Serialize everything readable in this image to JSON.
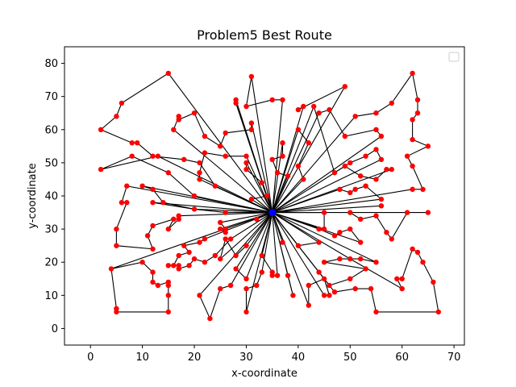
{
  "chart_data": {
    "type": "scatter",
    "title": "Problem5 Best Route",
    "xlabel": "x-coordinate",
    "ylabel": "y-coordinate",
    "xlim": [
      -5,
      72
    ],
    "ylim": [
      -5,
      85
    ],
    "xticks": [
      0,
      10,
      20,
      30,
      40,
      50,
      60,
      70
    ],
    "yticks": [
      0,
      10,
      20,
      30,
      40,
      50,
      60,
      70,
      80
    ],
    "grid": false,
    "legend": "top-right, empty",
    "depot": [
      35,
      35
    ],
    "point_color": "#ff0000",
    "depot_color": "#0000ff",
    "route_color": "#000000",
    "routes": [
      [
        [
          15,
          77
        ],
        [
          6,
          68
        ],
        [
          5,
          64
        ],
        [
          2,
          60
        ],
        [
          8,
          56
        ],
        [
          9,
          56
        ],
        [
          12,
          52
        ],
        [
          18,
          51
        ],
        [
          21,
          50
        ],
        [
          24,
          43
        ],
        [
          35,
          35
        ]
      ],
      [
        [
          31,
          76
        ],
        [
          30,
          67
        ],
        [
          35,
          69
        ],
        [
          37,
          69
        ],
        [
          35,
          35
        ]
      ],
      [
        [
          28,
          69
        ],
        [
          28,
          68
        ],
        [
          35,
          35
        ]
      ],
      [
        [
          13,
          52
        ],
        [
          2,
          48
        ],
        [
          8,
          52
        ],
        [
          15,
          47
        ],
        [
          20,
          40
        ],
        [
          35,
          35
        ]
      ],
      [
        [
          16,
          60
        ],
        [
          17,
          64
        ],
        [
          17,
          63
        ],
        [
          20,
          65
        ],
        [
          22,
          58
        ],
        [
          25,
          55
        ],
        [
          26,
          59
        ],
        [
          31,
          60
        ],
        [
          31,
          62
        ],
        [
          35,
          35
        ]
      ],
      [
        [
          21,
          45
        ],
        [
          21,
          47
        ],
        [
          22,
          53
        ],
        [
          26,
          52
        ],
        [
          30,
          52
        ],
        [
          35,
          35
        ]
      ],
      [
        [
          30,
          50
        ],
        [
          30,
          48
        ],
        [
          33,
          44
        ],
        [
          35,
          35
        ]
      ],
      [
        [
          49,
          73
        ],
        [
          40,
          66
        ],
        [
          41,
          67
        ],
        [
          35,
          35
        ]
      ],
      [
        [
          44,
          65
        ],
        [
          46,
          66
        ],
        [
          49,
          58
        ],
        [
          55,
          60
        ],
        [
          56,
          58
        ],
        [
          35,
          35
        ]
      ],
      [
        [
          43,
          67
        ],
        [
          47,
          47
        ],
        [
          50,
          50
        ],
        [
          53,
          52
        ],
        [
          55,
          54
        ],
        [
          56,
          51
        ],
        [
          35,
          35
        ]
      ],
      [
        [
          51,
          64
        ],
        [
          55,
          65
        ],
        [
          58,
          68
        ],
        [
          62,
          77
        ],
        [
          63,
          69
        ],
        [
          63,
          65
        ],
        [
          62,
          63
        ],
        [
          62,
          57
        ],
        [
          65,
          55
        ],
        [
          61,
          52
        ],
        [
          62,
          49
        ],
        [
          64,
          42
        ],
        [
          62,
          42
        ],
        [
          35,
          35
        ]
      ],
      [
        [
          40,
          60
        ],
        [
          42,
          56
        ],
        [
          40,
          49
        ],
        [
          41,
          45
        ],
        [
          35,
          35
        ]
      ],
      [
        [
          37,
          56
        ],
        [
          37,
          52
        ],
        [
          35,
          51
        ],
        [
          36,
          47
        ],
        [
          38,
          46
        ],
        [
          35,
          35
        ]
      ],
      [
        [
          34,
          40
        ],
        [
          31,
          39
        ],
        [
          35,
          35
        ]
      ],
      [
        [
          49,
          49
        ],
        [
          52,
          46
        ],
        [
          55,
          45
        ],
        [
          57,
          48
        ],
        [
          58,
          48
        ],
        [
          35,
          35
        ]
      ],
      [
        [
          48,
          42
        ],
        [
          50,
          41
        ],
        [
          51,
          42
        ],
        [
          53,
          43
        ],
        [
          56,
          39
        ],
        [
          35,
          35
        ]
      ],
      [
        [
          10,
          43
        ],
        [
          12,
          42
        ],
        [
          14,
          38
        ],
        [
          20,
          36
        ],
        [
          26,
          35
        ],
        [
          35,
          35
        ]
      ],
      [
        [
          7,
          43
        ],
        [
          6,
          38
        ],
        [
          7,
          38
        ],
        [
          5,
          30
        ],
        [
          5,
          25
        ],
        [
          12,
          24
        ],
        [
          11,
          28
        ],
        [
          12,
          31
        ],
        [
          16,
          33
        ],
        [
          15,
          30
        ],
        [
          17,
          33
        ],
        [
          17,
          34
        ],
        [
          35,
          35
        ]
      ],
      [
        [
          12,
          38
        ],
        [
          20,
          36
        ],
        [
          35,
          35
        ]
      ],
      [
        [
          25,
          32
        ],
        [
          26,
          30
        ],
        [
          26,
          29
        ],
        [
          25,
          30
        ],
        [
          35,
          35
        ]
      ],
      [
        [
          32,
          33
        ],
        [
          35,
          35
        ]
      ],
      [
        [
          22,
          27
        ],
        [
          21,
          26
        ],
        [
          18,
          25
        ],
        [
          19,
          23
        ],
        [
          17,
          22
        ],
        [
          16,
          19
        ],
        [
          15,
          19
        ],
        [
          17,
          19
        ],
        [
          17,
          18
        ],
        [
          19,
          19
        ],
        [
          20,
          21
        ],
        [
          22,
          20
        ],
        [
          24,
          22
        ],
        [
          27,
          27
        ],
        [
          35,
          35
        ]
      ],
      [
        [
          4,
          18
        ],
        [
          10,
          20
        ],
        [
          12,
          17
        ],
        [
          12,
          14
        ],
        [
          13,
          13
        ],
        [
          15,
          14
        ],
        [
          15,
          13
        ],
        [
          15,
          10
        ],
        [
          15,
          5
        ],
        [
          5,
          5
        ],
        [
          5,
          6
        ],
        [
          4,
          18
        ]
      ],
      [
        [
          25,
          21
        ],
        [
          26,
          27
        ],
        [
          28,
          22
        ],
        [
          30,
          25
        ],
        [
          35,
          35
        ]
      ],
      [
        [
          33,
          22
        ],
        [
          35,
          17
        ],
        [
          35,
          16
        ],
        [
          36,
          16
        ],
        [
          35,
          35
        ]
      ],
      [
        [
          28,
          18
        ],
        [
          30,
          15
        ],
        [
          35,
          35
        ]
      ],
      [
        [
          21,
          10
        ],
        [
          23,
          3
        ],
        [
          25,
          12
        ],
        [
          27,
          13
        ],
        [
          35,
          35
        ]
      ],
      [
        [
          30,
          5
        ],
        [
          30,
          12
        ],
        [
          32,
          13
        ],
        [
          33,
          17
        ],
        [
          35,
          35
        ]
      ],
      [
        [
          39,
          10
        ],
        [
          38,
          16
        ],
        [
          35,
          35
        ]
      ],
      [
        [
          42,
          7
        ],
        [
          42,
          13
        ],
        [
          45,
          15
        ],
        [
          46,
          10
        ],
        [
          45,
          10
        ],
        [
          35,
          35
        ]
      ],
      [
        [
          44,
          17
        ],
        [
          46,
          13
        ],
        [
          50,
          15
        ],
        [
          53,
          18
        ],
        [
          45,
          20
        ],
        [
          48,
          21
        ],
        [
          52,
          21
        ],
        [
          55,
          20
        ],
        [
          35,
          35
        ]
      ],
      [
        [
          40,
          25
        ],
        [
          44,
          26
        ],
        [
          35,
          35
        ]
      ],
      [
        [
          37,
          26
        ],
        [
          35,
          35
        ]
      ],
      [
        [
          47,
          11
        ],
        [
          51,
          12
        ],
        [
          54,
          12
        ],
        [
          55,
          5
        ],
        [
          67,
          5
        ],
        [
          66,
          14
        ],
        [
          64,
          20
        ],
        [
          63,
          23
        ],
        [
          62,
          24
        ],
        [
          60,
          15
        ],
        [
          59,
          15
        ],
        [
          60,
          12
        ],
        [
          50,
          21
        ],
        [
          35,
          35
        ]
      ],
      [
        [
          44,
          30
        ],
        [
          47,
          28
        ],
        [
          48,
          29
        ],
        [
          50,
          30
        ],
        [
          52,
          26
        ],
        [
          35,
          35
        ]
      ],
      [
        [
          45,
          35
        ],
        [
          50,
          35
        ],
        [
          52,
          33
        ],
        [
          55,
          34
        ],
        [
          57,
          29
        ],
        [
          58,
          27
        ],
        [
          61,
          35
        ],
        [
          65,
          35
        ],
        [
          61,
          35
        ],
        [
          35,
          35
        ]
      ],
      [
        [
          56,
          37
        ],
        [
          35,
          35
        ]
      ],
      [
        [
          45,
          30
        ],
        [
          45,
          35
        ],
        [
          35,
          35
        ]
      ]
    ]
  }
}
